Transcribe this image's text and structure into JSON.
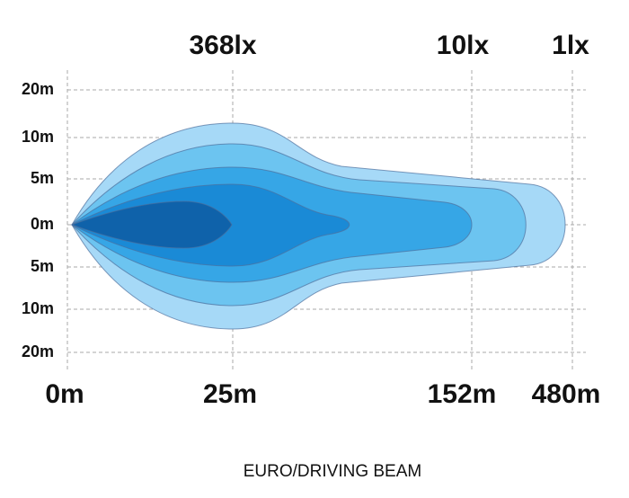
{
  "lux_labels": [
    "368lx",
    "10lx",
    "1lx"
  ],
  "width_labels": [
    "20m",
    "10m",
    "5m",
    "0m",
    "5m",
    "10m",
    "20m"
  ],
  "distance_labels": [
    "0m",
    "25m",
    "152m",
    "480m"
  ],
  "title": "EURO/DRIVING BEAM"
}
